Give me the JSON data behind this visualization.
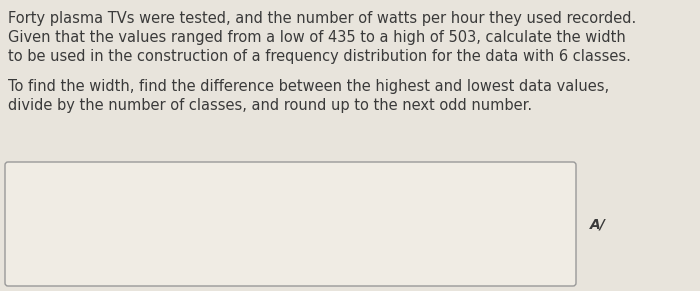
{
  "line1": "Forty plasma TVs were tested, and the number of watts per hour they used recorded.",
  "line2": "Given that the values ranged from a low of 435 to a high of 503, calculate the width",
  "line3": "to be used in the construction of a frequency distribution for the data with 6 classes.",
  "line4": "To find the width, find the difference between the highest and lowest data values,",
  "line5": "divide by the number of classes, and round up to the next odd number.",
  "bg_color": "#e8e4dc",
  "text_color": "#3a3a3a",
  "box_bg": "#f0ece4",
  "box_edge": "#999999",
  "pencil_symbol": "A/",
  "font_size_main": 10.5,
  "font_size_pencil": 10
}
